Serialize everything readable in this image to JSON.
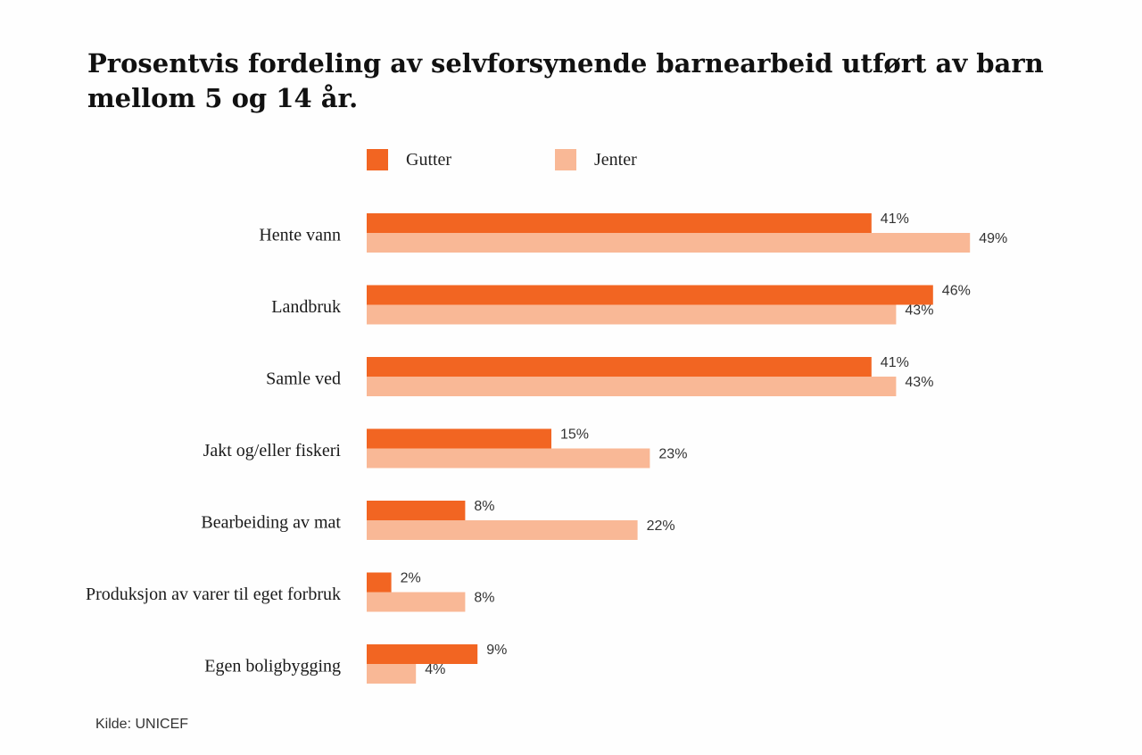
{
  "header": {
    "title": "Prosentvis fordeling av selvforsynende barnearbeid utført av barn mellom 5 og 14 år."
  },
  "source": "Kilde: UNICEF",
  "colors": {
    "gutter": "#f26522",
    "jenter": "#f9b896"
  },
  "chart_data": {
    "type": "bar",
    "orientation": "horizontal",
    "title": "Prosentvis fordeling av selvforsynende barnearbeid utført av barn mellom 5 og 14 år.",
    "xlabel": "",
    "ylabel": "",
    "xlim": [
      0,
      50
    ],
    "grid": false,
    "legend": "top",
    "categories": [
      "Hente vann",
      "Landbruk",
      "Samle ved",
      "Jakt og/eller fiskeri",
      "Bearbeiding av mat",
      "Produksjon av varer til eget forbruk",
      "Egen boligbygging"
    ],
    "series": [
      {
        "name": "Gutter",
        "values": [
          41,
          46,
          41,
          15,
          8,
          2,
          9
        ],
        "labels": [
          "41%",
          "46%",
          "41%",
          "15%",
          "8%",
          "2%",
          "9%"
        ]
      },
      {
        "name": "Jenter",
        "values": [
          49,
          43,
          43,
          23,
          22,
          8,
          4
        ],
        "labels": [
          "49%",
          "43%",
          "43%",
          "23%",
          "22%",
          "8%",
          "4%"
        ]
      }
    ]
  }
}
